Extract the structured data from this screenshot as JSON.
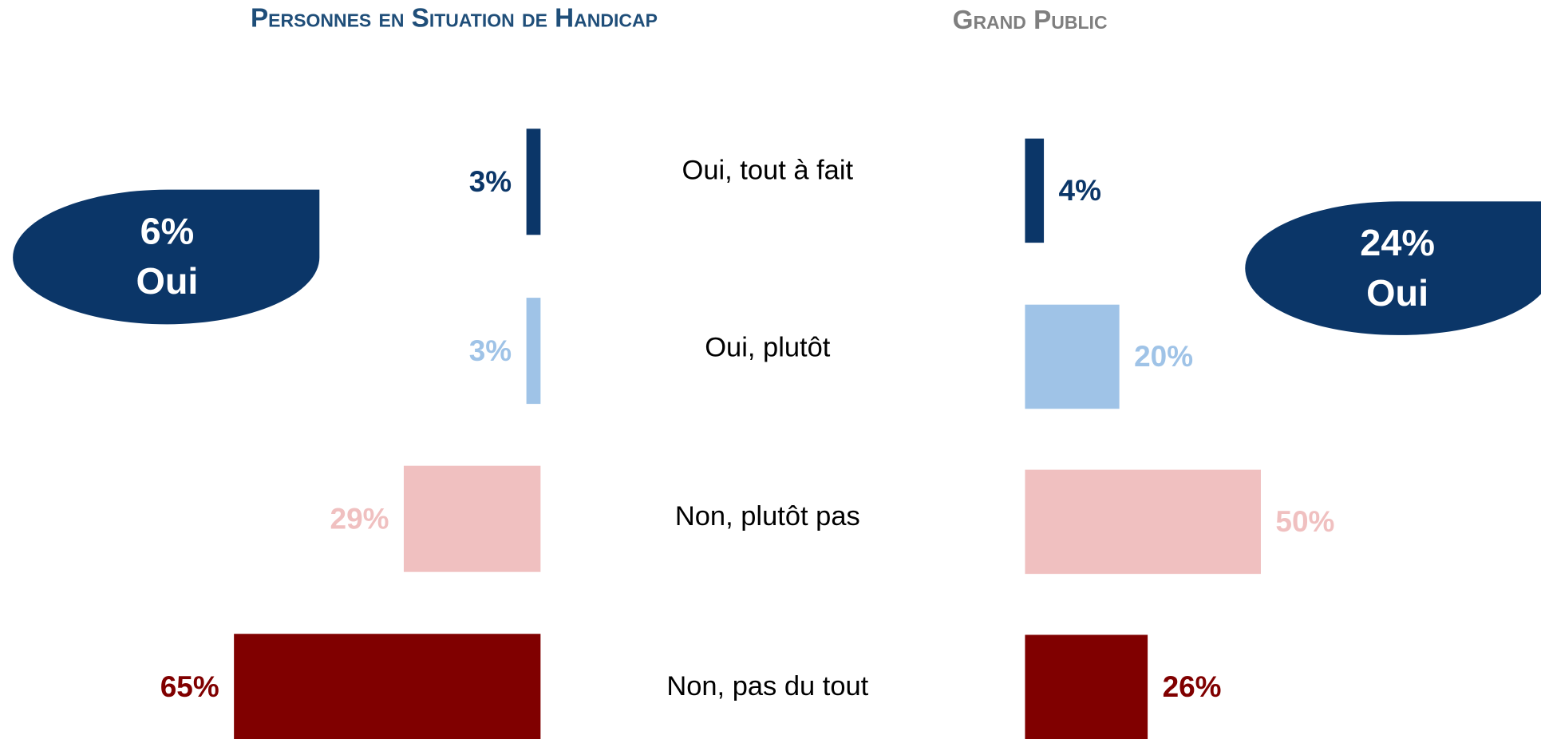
{
  "chart_data": {
    "type": "bar",
    "categories": [
      "Oui, tout à fait",
      "Oui, plutôt",
      "Non, plutôt pas",
      "Non, pas du tout"
    ],
    "colors": [
      "#0b3668",
      "#9fc3e7",
      "#f0c0c0",
      "#800000"
    ],
    "xlim": [
      0,
      100
    ],
    "series": [
      {
        "name": "Personnes en Situation de Handicap",
        "title_color": "#1f4e79",
        "side": "left",
        "values": [
          3,
          3,
          29,
          65
        ],
        "value_labels": [
          "3%",
          "3%",
          "29%",
          "65%"
        ],
        "summary": {
          "value": 6,
          "label": "6%",
          "text": "Oui"
        }
      },
      {
        "name": "Grand Public",
        "title_color": "#7f7f7f",
        "side": "right",
        "values": [
          4,
          20,
          50,
          26
        ],
        "value_labels": [
          "4%",
          "20%",
          "50%",
          "26%"
        ],
        "summary": {
          "value": 24,
          "label": "24%",
          "text": "Oui"
        }
      }
    ]
  }
}
